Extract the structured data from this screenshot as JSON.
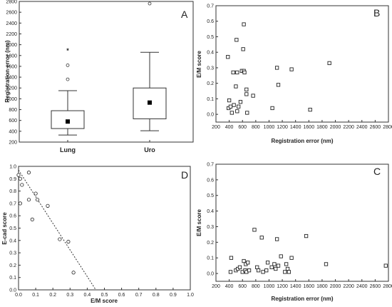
{
  "chart_data": [
    {
      "panel": "A",
      "type": "box",
      "ylabel": "Registration error (nm)",
      "ylim": [
        200,
        2800
      ],
      "yticks": [
        200,
        400,
        600,
        800,
        1000,
        1200,
        1400,
        1600,
        1800,
        2000,
        2200,
        2400,
        2600,
        2800
      ],
      "categories": [
        "Lung",
        "Uro"
      ],
      "boxes": [
        {
          "name": "Lung",
          "whisker_low": 330,
          "q1": 450,
          "median": 580,
          "mean": 580,
          "q3": 780,
          "whisker_high": 1150,
          "outliers": [
            1360,
            1620
          ],
          "extremes": [
            1900
          ]
        },
        {
          "name": "Uro",
          "whisker_low": 410,
          "q1": 630,
          "median": 930,
          "mean": 930,
          "q3": 1200,
          "whisker_high": 1860,
          "outliers": [
            2760
          ],
          "extremes": []
        }
      ]
    },
    {
      "panel": "B",
      "type": "scatter",
      "xlabel": "Registration error (nm)",
      "ylabel": "E/M score",
      "xlim": [
        200,
        2800
      ],
      "ylim": [
        -0.05,
        0.7
      ],
      "xticks": [
        200,
        400,
        600,
        800,
        1000,
        1200,
        1400,
        1600,
        1800,
        2000,
        2200,
        2400,
        2600,
        2800
      ],
      "yticks": [
        0.0,
        0.1,
        0.2,
        0.3,
        0.4,
        0.5,
        0.6,
        0.7
      ],
      "points": [
        [
          380,
          0.37
        ],
        [
          390,
          0.04
        ],
        [
          400,
          0.09
        ],
        [
          420,
          0.05
        ],
        [
          440,
          0.01
        ],
        [
          460,
          0.27
        ],
        [
          470,
          0.06
        ],
        [
          500,
          0.18
        ],
        [
          510,
          0.48
        ],
        [
          520,
          0.27
        ],
        [
          520,
          0.02
        ],
        [
          540,
          0.05
        ],
        [
          570,
          0.08
        ],
        [
          590,
          0.28
        ],
        [
          610,
          0.42
        ],
        [
          620,
          0.58
        ],
        [
          620,
          0.28
        ],
        [
          630,
          0.27
        ],
        [
          660,
          0.16
        ],
        [
          660,
          0.13
        ],
        [
          670,
          0.01
        ],
        [
          760,
          0.12
        ],
        [
          1050,
          0.04
        ],
        [
          1120,
          0.3
        ],
        [
          1140,
          0.19
        ],
        [
          1340,
          0.29
        ],
        [
          1620,
          0.03
        ],
        [
          1910,
          0.33
        ]
      ]
    },
    {
      "panel": "D",
      "type": "scatter",
      "xlabel": "E/M score",
      "ylabel": "E-cad score",
      "xlim": [
        0.0,
        1.0
      ],
      "ylim": [
        0.0,
        1.0
      ],
      "xticks": [
        0.0,
        0.1,
        0.2,
        0.3,
        0.4,
        0.5,
        0.6,
        0.7,
        0.8,
        0.9,
        1.0
      ],
      "yticks": [
        0.0,
        0.1,
        0.2,
        0.3,
        0.4,
        0.5,
        0.6,
        0.7,
        0.8,
        0.9,
        1.0
      ],
      "points": [
        [
          0.0,
          0.93
        ],
        [
          0.01,
          0.9
        ],
        [
          0.02,
          0.85
        ],
        [
          0.01,
          0.7
        ],
        [
          0.06,
          0.95
        ],
        [
          0.06,
          0.73
        ],
        [
          0.08,
          0.57
        ],
        [
          0.1,
          0.78
        ],
        [
          0.11,
          0.73
        ],
        [
          0.17,
          0.68
        ],
        [
          0.24,
          0.41
        ],
        [
          0.29,
          0.39
        ],
        [
          0.32,
          0.14
        ]
      ],
      "trendline": [
        [
          0.0,
          0.97
        ],
        [
          0.45,
          0.0
        ]
      ]
    },
    {
      "panel": "C",
      "type": "scatter",
      "xlabel": "Registration error (nm)",
      "ylabel": "E/M score",
      "xlim": [
        200,
        2800
      ],
      "ylim": [
        -0.05,
        0.7
      ],
      "xticks": [
        200,
        400,
        600,
        800,
        1000,
        1200,
        1400,
        1600,
        1800,
        2000,
        2200,
        2400,
        2600,
        2800
      ],
      "yticks": [
        0.0,
        0.1,
        0.2,
        0.3,
        0.4,
        0.5,
        0.6,
        0.7
      ],
      "points": [
        [
          420,
          0.01
        ],
        [
          430,
          0.1
        ],
        [
          500,
          0.02
        ],
        [
          530,
          0.03
        ],
        [
          560,
          0.04
        ],
        [
          600,
          0.01
        ],
        [
          620,
          0.08
        ],
        [
          640,
          0.02
        ],
        [
          650,
          0.06
        ],
        [
          660,
          0.01
        ],
        [
          680,
          0.07
        ],
        [
          700,
          0.02
        ],
        [
          780,
          0.28
        ],
        [
          820,
          0.04
        ],
        [
          840,
          0.02
        ],
        [
          890,
          0.23
        ],
        [
          910,
          0.01
        ],
        [
          960,
          0.02
        ],
        [
          980,
          0.07
        ],
        [
          1040,
          0.04
        ],
        [
          1080,
          0.06
        ],
        [
          1100,
          0.03
        ],
        [
          1120,
          0.22
        ],
        [
          1140,
          0.05
        ],
        [
          1180,
          0.11
        ],
        [
          1240,
          0.01
        ],
        [
          1260,
          0.06
        ],
        [
          1280,
          0.03
        ],
        [
          1300,
          0.01
        ],
        [
          1340,
          0.1
        ],
        [
          1560,
          0.24
        ],
        [
          1860,
          0.06
        ],
        [
          2760,
          0.05
        ]
      ]
    }
  ]
}
